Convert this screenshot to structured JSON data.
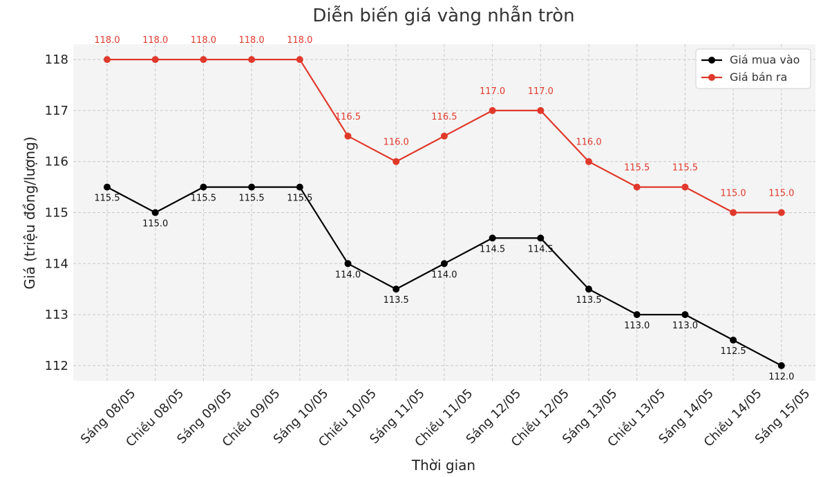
{
  "chart_data": {
    "type": "line",
    "title": "Diễn biến giá vàng nhẫn tròn",
    "xlabel": "Thời gian",
    "ylabel": "Giá (triệu đồng/lượng)",
    "ylim": [
      111.7,
      118.3
    ],
    "yticks": [
      112,
      113,
      114,
      115,
      116,
      117,
      118
    ],
    "grid": true,
    "legend_position": "top-right",
    "categories": [
      "Sáng 08/05",
      "Chiều 08/05",
      "Sáng 09/05",
      "Chiều 09/05",
      "Sáng 10/05",
      "Chiều 10/05",
      "Sáng 11/05",
      "Chiều 11/05",
      "Sáng 12/05",
      "Chiều 12/05",
      "Sáng 13/05",
      "Chiều 13/05",
      "Sáng 14/05",
      "Chiều 14/05",
      "Sáng 15/05"
    ],
    "series": [
      {
        "name": "Giá mua vào",
        "color": "#000000",
        "label_color": "#111111",
        "label_position": "below",
        "values": [
          115.5,
          115.0,
          115.5,
          115.5,
          115.5,
          114.0,
          113.5,
          114.0,
          114.5,
          114.5,
          113.5,
          113.0,
          113.0,
          112.5,
          112.0
        ],
        "labels": [
          "115.5",
          "115.0",
          "115.5",
          "115.5",
          "115.5",
          "114.0",
          "113.5",
          "114.0",
          "114.5",
          "114.5",
          "113.5",
          "113.0",
          "113.0",
          "112.5",
          "112.0"
        ]
      },
      {
        "name": "Giá bán ra",
        "color": "#e0392b",
        "label_color": "#e0392b",
        "label_position": "above",
        "values": [
          118.0,
          118.0,
          118.0,
          118.0,
          118.0,
          116.5,
          116.0,
          116.5,
          117.0,
          117.0,
          116.0,
          115.5,
          115.5,
          115.0,
          115.0
        ],
        "labels": [
          "118.0",
          "118.0",
          "118.0",
          "118.0",
          "118.0",
          "116.5",
          "116.0",
          "116.5",
          "117.0",
          "117.0",
          "116.0",
          "115.5",
          "115.5",
          "115.0",
          "115.0"
        ]
      }
    ]
  }
}
